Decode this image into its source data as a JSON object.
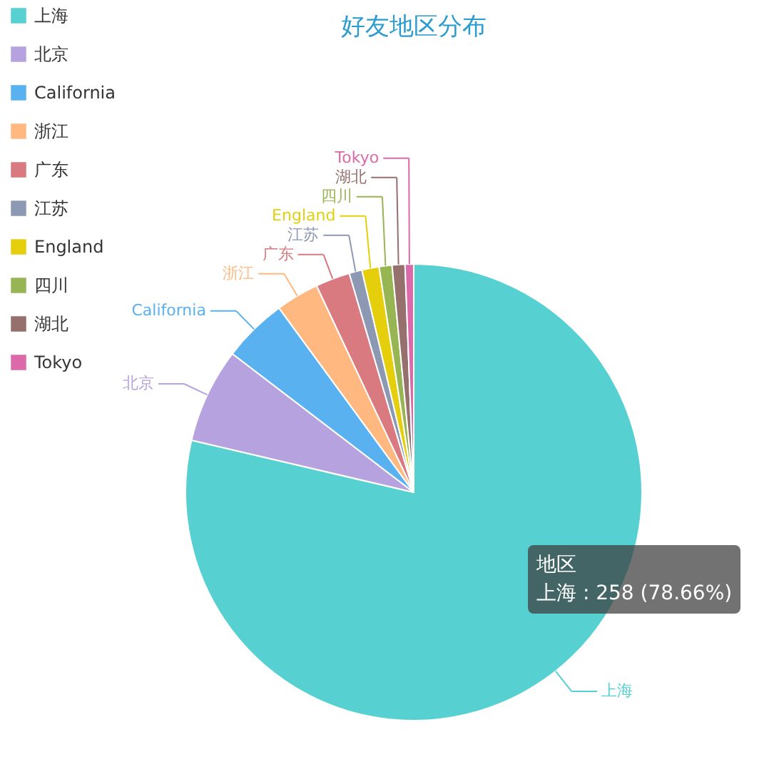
{
  "chart_data": {
    "type": "pie",
    "title": "好友地区分布",
    "categories": [
      "上海",
      "北京",
      "California",
      "浙江",
      "广东",
      "江苏",
      "England",
      "四川",
      "湖北",
      "Tokyo"
    ],
    "values": [
      78.66,
      6.72,
      4.57,
      3.05,
      2.44,
      0.91,
      1.22,
      0.91,
      0.91,
      0.61
    ],
    "colors": [
      "#57d0d2",
      "#b6a2de",
      "#5ab1ef",
      "#ffb980",
      "#d87a80",
      "#8d98b3",
      "#e5cf0d",
      "#97b552",
      "#95706d",
      "#dc69aa"
    ],
    "legend": "top left",
    "annotations": [
      "地区",
      "上海 : 258 (78.66%)"
    ]
  }
}
